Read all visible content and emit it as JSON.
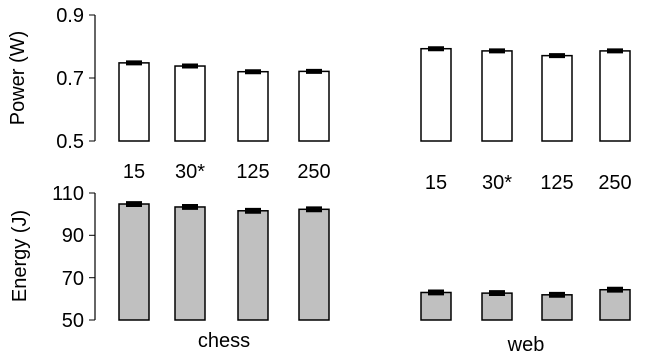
{
  "chart_data": [
    {
      "type": "bar",
      "ylabel": "Power (W)",
      "ylim": [
        0.5,
        0.9
      ],
      "yticks": [
        "0.5",
        "0.7",
        "0.9"
      ],
      "bar_color": "#ffffff",
      "groups": [
        {
          "name": "chess",
          "categories": [
            "15",
            "30*",
            "125",
            "250"
          ],
          "values": [
            0.748,
            0.738,
            0.72,
            0.721
          ],
          "errors": [
            0.004,
            0.004,
            0.004,
            0.004
          ]
        },
        {
          "name": "web",
          "categories": [
            "15",
            "30*",
            "125",
            "250"
          ],
          "values": [
            0.793,
            0.786,
            0.771,
            0.786
          ],
          "errors": [
            0.004,
            0.004,
            0.004,
            0.004
          ]
        }
      ]
    },
    {
      "type": "bar",
      "ylabel": "Energy (J)",
      "ylim": [
        50,
        110
      ],
      "yticks": [
        "50",
        "70",
        "90",
        "110"
      ],
      "bar_color": "#c0c0c0",
      "groups": [
        {
          "name": "chess",
          "values": [
            104.8,
            103.4,
            101.6,
            102.3
          ],
          "errors": [
            0.8,
            0.8,
            0.8,
            0.8
          ]
        },
        {
          "name": "web",
          "values": [
            63.0,
            62.7,
            61.9,
            64.3
          ],
          "errors": [
            0.8,
            0.8,
            0.8,
            0.8
          ]
        }
      ]
    }
  ]
}
